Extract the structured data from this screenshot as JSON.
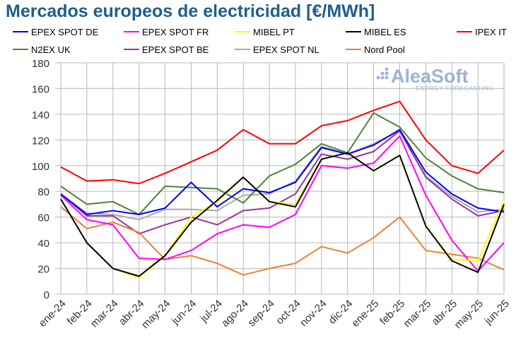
{
  "chart_data": {
    "type": "line",
    "title": "Mercados europeos de electricidad [€/MWh]",
    "categories": [
      "ene-24",
      "feb-24",
      "mar-24",
      "abr-24",
      "may-24",
      "jun-24",
      "jul-24",
      "ago-24",
      "sep-24",
      "oct-24",
      "nov-24",
      "dic-24",
      "ene-25",
      "feb-25",
      "mar-25",
      "abr-25",
      "may-25",
      "jun-25"
    ],
    "ylim": [
      0,
      180
    ],
    "yticks": [
      0,
      20,
      40,
      60,
      80,
      100,
      120,
      140,
      160,
      180
    ],
    "grid": true,
    "legend": "top",
    "series": [
      {
        "name": "EPEX SPOT DE",
        "color": "#0000ff",
        "values": [
          78,
          62,
          65,
          62,
          67,
          87,
          68,
          82,
          79,
          87,
          114,
          109,
          116,
          128,
          95,
          78,
          67,
          64
        ]
      },
      {
        "name": "EPEX SPOT FR",
        "color": "#ff00ff",
        "values": [
          77,
          58,
          54,
          28,
          27,
          34,
          47,
          54,
          52,
          62,
          100,
          98,
          102,
          123,
          77,
          42,
          18,
          40
        ]
      },
      {
        "name": "MIBEL PT",
        "color": "#ffff00",
        "values": [
          74,
          40,
          20,
          13,
          30,
          60,
          72,
          91,
          72,
          70,
          105,
          110,
          96,
          108,
          53,
          27,
          26,
          73
        ]
      },
      {
        "name": "MIBEL ES",
        "color": "#000000",
        "values": [
          74,
          40,
          20,
          14,
          30,
          56,
          73,
          91,
          72,
          68,
          105,
          110,
          96,
          108,
          53,
          26,
          17,
          70
        ]
      },
      {
        "name": "IPEX IT",
        "color": "#ff0000",
        "values": [
          99,
          88,
          89,
          86,
          94,
          103,
          112,
          128,
          117,
          117,
          131,
          135,
          143,
          150,
          120,
          100,
          94,
          112
        ]
      },
      {
        "name": "N2EX UK",
        "color": "#538135",
        "values": [
          84,
          70,
          72,
          62,
          84,
          83,
          82,
          71,
          92,
          101,
          117,
          110,
          141,
          130,
          106,
          92,
          82,
          79
        ]
      },
      {
        "name": "EPEX SPOT BE",
        "color": "#993399",
        "values": [
          78,
          61,
          61,
          47,
          54,
          60,
          54,
          65,
          67,
          78,
          109,
          105,
          111,
          127,
          91,
          74,
          61,
          65
        ]
      },
      {
        "name": "EPEX SPOT NL",
        "color": "#aaaaaa",
        "values": [
          78,
          63,
          62,
          58,
          66,
          66,
          65,
          77,
          78,
          88,
          115,
          109,
          117,
          127,
          92,
          76,
          64,
          66
        ]
      },
      {
        "name": "Nord Pool",
        "color": "#f08030",
        "values": [
          68,
          51,
          56,
          48,
          27,
          30,
          24,
          15,
          20,
          24,
          37,
          32,
          44,
          60,
          34,
          31,
          28,
          19
        ]
      }
    ]
  },
  "logo": {
    "name": "AleaSoft",
    "tagline": "ENERGY FORECASTING"
  }
}
